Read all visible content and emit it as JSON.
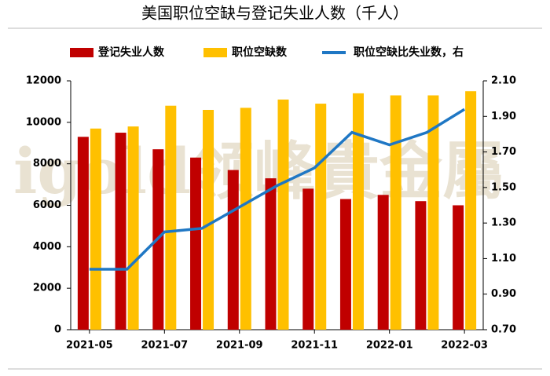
{
  "chart_data": {
    "type": "bar_line",
    "title": "美国职位空缺与登记失业人数（千人）",
    "watermark": "igold领峰貴金屬",
    "categories": [
      "2021-05",
      null,
      "2021-07",
      null,
      "2021-09",
      null,
      "2021-11",
      null,
      "2022-01",
      null,
      "2022-03"
    ],
    "series": [
      {
        "name": "登记失业人数",
        "color": "#c00000",
        "kind": "bar",
        "values": [
          9300,
          9500,
          8700,
          8300,
          7700,
          7300,
          6800,
          6300,
          6500,
          6200,
          6000
        ]
      },
      {
        "name": "职位空缺数",
        "color": "#ffc000",
        "kind": "bar",
        "values": [
          9700,
          9800,
          10800,
          10600,
          10700,
          11100,
          10900,
          11400,
          11300,
          11300,
          11500
        ]
      },
      {
        "name": "职位空缺比失业数，右",
        "color": "#1f77c4",
        "kind": "line",
        "axis": "y2",
        "values": [
          1.04,
          1.04,
          1.25,
          1.27,
          1.39,
          1.51,
          1.61,
          1.81,
          1.74,
          1.81,
          1.94
        ]
      }
    ],
    "ylim": [
      0,
      12000
    ],
    "yticks": [
      0,
      2000,
      4000,
      6000,
      8000,
      10000,
      12000
    ],
    "y2lim": [
      0.7,
      2.1
    ],
    "y2ticks": [
      {
        "value": 0.7,
        "label": "0.70"
      },
      {
        "value": 0.9,
        "label": "0.90"
      },
      {
        "value": 1.1,
        "label": "1.10"
      },
      {
        "value": 1.3,
        "label": "1.30"
      },
      {
        "value": 1.5,
        "label": "1.50"
      },
      {
        "value": 1.7,
        "label": "1.70"
      },
      {
        "value": 1.9,
        "label": "1.90"
      },
      {
        "value": 2.1,
        "label": "2.10"
      }
    ],
    "legend": "top"
  }
}
